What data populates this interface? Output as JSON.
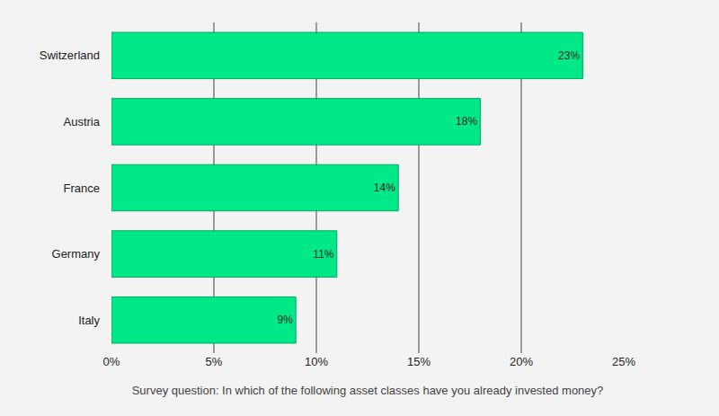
{
  "chart_data": {
    "type": "bar",
    "orientation": "horizontal",
    "categories": [
      "Switzerland",
      "Austria",
      "France",
      "Germany",
      "Italy"
    ],
    "values": [
      23,
      18,
      14,
      11,
      9
    ],
    "value_labels": [
      "23%",
      "18%",
      "14%",
      "11%",
      "9%"
    ],
    "data_labels": true,
    "color": "#00e887",
    "xlim": [
      0,
      25
    ],
    "xticks": [
      {
        "value": 0,
        "label": "0%"
      },
      {
        "value": 5,
        "label": "5%"
      },
      {
        "value": 10,
        "label": "10%"
      },
      {
        "value": 15,
        "label": "15%"
      },
      {
        "value": 20,
        "label": "20%"
      },
      {
        "value": 25,
        "label": "25%"
      }
    ],
    "grid": true,
    "xlabel": "Survey question: In which of the following asset classes have you already invested money?"
  }
}
